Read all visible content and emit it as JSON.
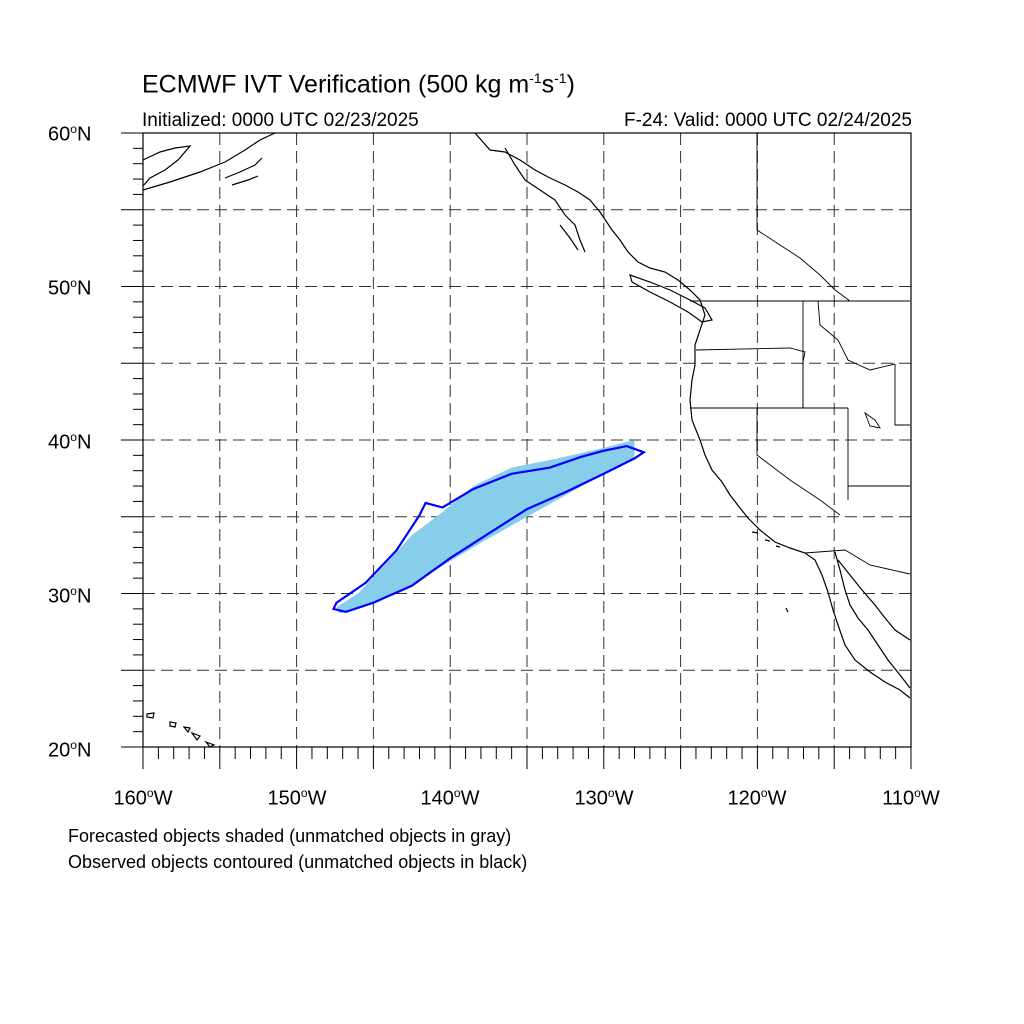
{
  "title": {
    "main": "ECMWF IVT Verification (500 kg m",
    "exp1": "-1",
    "mid": "s",
    "exp2": "-1",
    "end": ")"
  },
  "subtitle": {
    "initialized": "Initialized: 0000 UTC 02/23/2025",
    "valid": "F-24: Valid: 0000 UTC 02/24/2025"
  },
  "map": {
    "lon_range": [
      -160,
      -110
    ],
    "lat_range": [
      20,
      60
    ],
    "grid_interval_deg": 5,
    "lat_labels": [
      {
        "value": "60",
        "suffix": "N"
      },
      {
        "value": "50",
        "suffix": "N"
      },
      {
        "value": "40",
        "suffix": "N"
      },
      {
        "value": "30",
        "suffix": "N"
      },
      {
        "value": "20",
        "suffix": "N"
      }
    ],
    "lon_labels": [
      {
        "value": "160",
        "suffix": "W"
      },
      {
        "value": "150",
        "suffix": "W"
      },
      {
        "value": "140",
        "suffix": "W"
      },
      {
        "value": "130",
        "suffix": "W"
      },
      {
        "value": "120",
        "suffix": "W"
      },
      {
        "value": "110",
        "suffix": "W"
      }
    ],
    "forecast_object": {
      "color": "#87ceeb",
      "matched": true,
      "polygon_lonlat": [
        [
          -147.2,
          28.7
        ],
        [
          -145.5,
          29.2
        ],
        [
          -143.5,
          30.0
        ],
        [
          -141.0,
          31.5
        ],
        [
          -138.0,
          33.3
        ],
        [
          -135.0,
          35.0
        ],
        [
          -132.5,
          36.4
        ],
        [
          -130.0,
          37.8
        ],
        [
          -128.0,
          38.8
        ],
        [
          -128.0,
          40.0
        ],
        [
          -130.0,
          39.5
        ],
        [
          -133.0,
          38.8
        ],
        [
          -136.0,
          38.2
        ],
        [
          -138.5,
          37.0
        ],
        [
          -140.5,
          35.3
        ],
        [
          -142.5,
          33.8
        ],
        [
          -144.5,
          31.6
        ],
        [
          -146.0,
          30.0
        ],
        [
          -147.4,
          29.1
        ]
      ]
    },
    "observed_object": {
      "color": "#0000ff",
      "matched": true,
      "polygon_lonlat": [
        [
          -147.6,
          29.0
        ],
        [
          -146.8,
          28.8
        ],
        [
          -145.0,
          29.4
        ],
        [
          -142.5,
          30.5
        ],
        [
          -140.0,
          32.3
        ],
        [
          -137.5,
          33.9
        ],
        [
          -135.0,
          35.5
        ],
        [
          -132.5,
          36.6
        ],
        [
          -130.0,
          37.8
        ],
        [
          -128.0,
          38.8
        ],
        [
          -127.4,
          39.2
        ],
        [
          -128.5,
          39.6
        ],
        [
          -130.0,
          39.3
        ],
        [
          -131.5,
          38.9
        ],
        [
          -133.5,
          38.2
        ],
        [
          -136.0,
          37.8
        ],
        [
          -138.5,
          36.8
        ],
        [
          -140.5,
          35.6
        ],
        [
          -141.6,
          35.9
        ],
        [
          -142.0,
          35.1
        ],
        [
          -143.5,
          32.8
        ],
        [
          -145.5,
          30.7
        ],
        [
          -147.4,
          29.4
        ]
      ]
    }
  },
  "notes": {
    "forecast": "Forecasted objects shaded (unmatched objects in gray)",
    "observed": "Observed objects contoured (unmatched objects in black)"
  }
}
